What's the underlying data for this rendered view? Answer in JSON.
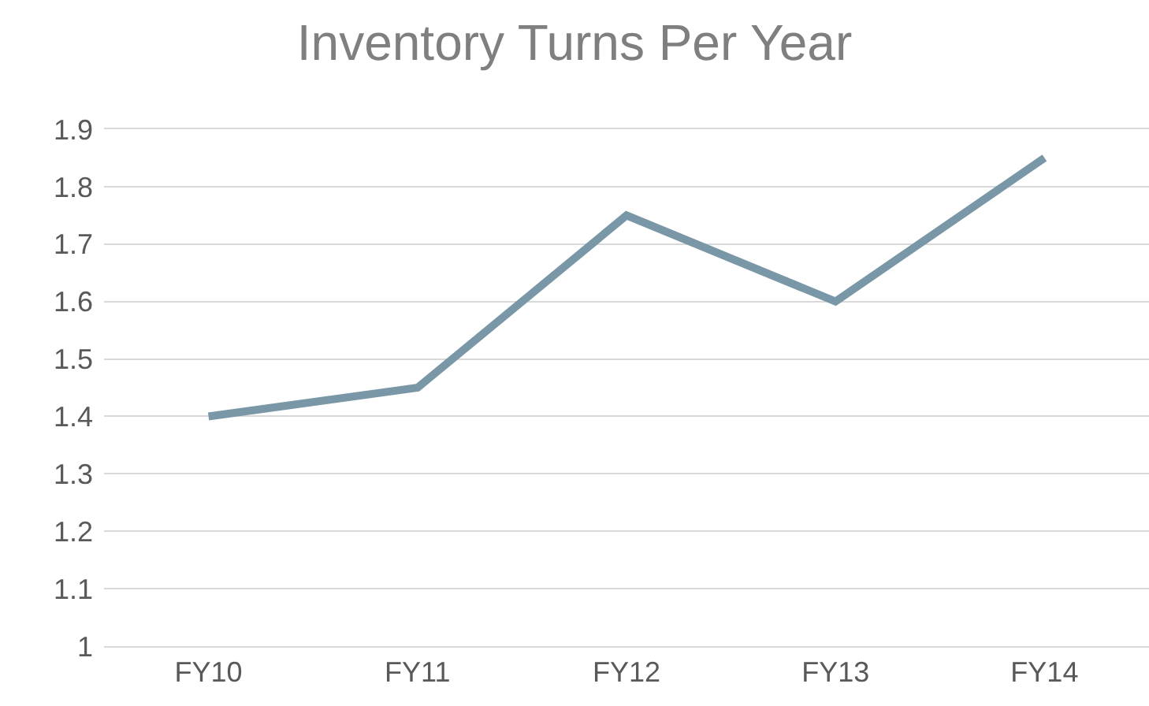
{
  "chart_data": {
    "type": "line",
    "title": "Inventory Turns Per Year",
    "categories": [
      "FY10",
      "FY11",
      "FY12",
      "FY13",
      "FY14"
    ],
    "series": [
      {
        "color": "#7a97a8",
        "values": [
          1.4,
          1.45,
          1.75,
          1.6,
          1.85
        ]
      }
    ],
    "ylim": [
      1,
      1.9
    ],
    "yticks": [
      1,
      1.1,
      1.2,
      1.3,
      1.4,
      1.5,
      1.6,
      1.7,
      1.8,
      1.9
    ],
    "grid": "y",
    "marker": "none",
    "line_style": "solid"
  }
}
